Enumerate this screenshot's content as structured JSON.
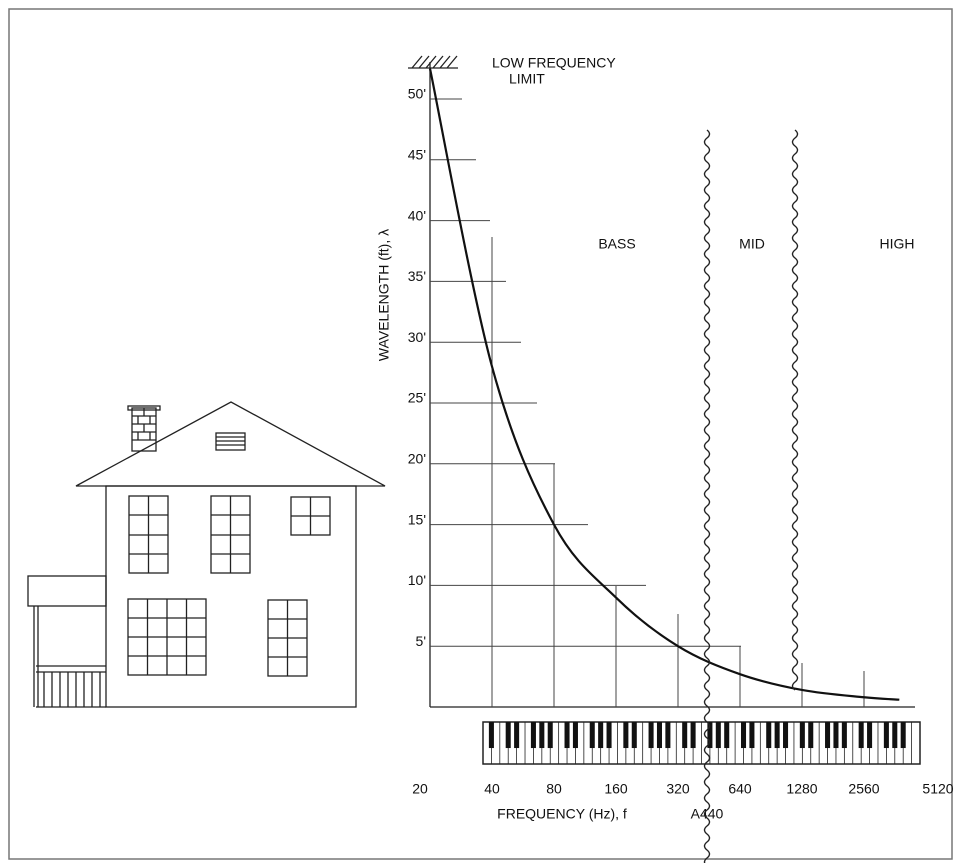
{
  "chart_data": {
    "type": "line",
    "log_x": true,
    "title_lines": [
      "LOW FREQUENCY",
      "LIMIT"
    ],
    "y_label": "WAVELENGTH (ft), λ",
    "x_label": "FREQUENCY (Hz), f",
    "regions": [
      "BASS",
      "MID",
      "HIGH"
    ],
    "annotation": "A440",
    "x": [
      20,
      40,
      80,
      160,
      320,
      640,
      1280,
      2560,
      3800
    ],
    "series": [
      {
        "color": "#111111",
        "values": [
          52.5,
          28,
          15,
          9,
          5,
          2.7,
          1.4,
          0.8,
          0.6
        ]
      }
    ],
    "xlim": [
      20,
      5120
    ],
    "xticks": [
      20,
      40,
      80,
      160,
      320,
      640,
      1280,
      2560,
      5120
    ],
    "ylim": [
      0,
      50
    ],
    "yticks": [
      {
        "value": 5,
        "label": "5'"
      },
      {
        "value": 10,
        "label": "10'"
      },
      {
        "value": 15,
        "label": "15'"
      },
      {
        "value": 20,
        "label": "20'"
      },
      {
        "value": 25,
        "label": "25'"
      },
      {
        "value": 30,
        "label": "30'"
      },
      {
        "value": 35,
        "label": "35'"
      },
      {
        "value": 40,
        "label": "40'"
      },
      {
        "value": 45,
        "label": "45'"
      },
      {
        "value": 50,
        "label": "50'"
      }
    ]
  }
}
